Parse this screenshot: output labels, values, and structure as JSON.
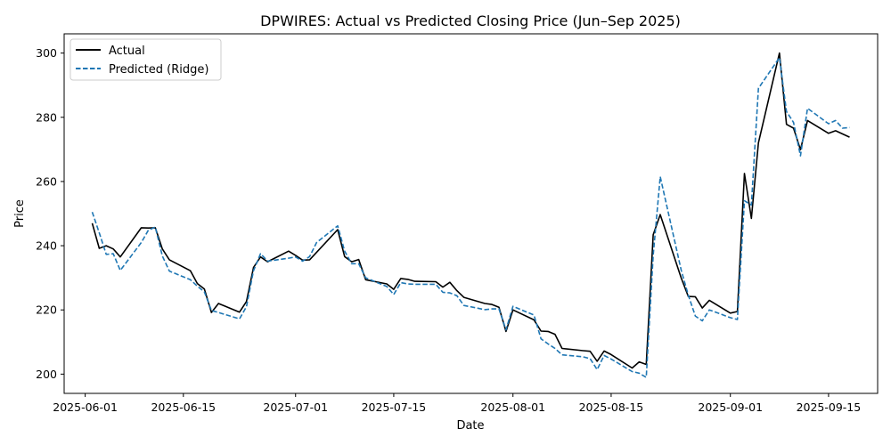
{
  "chart_data": {
    "type": "line",
    "title": "DPWIRES: Actual vs Predicted Closing Price (Jun–Sep 2025)",
    "xlabel": "Date",
    "ylabel": "Price",
    "xlim": [
      "2025-05-29",
      "2025-09-22"
    ],
    "ylim": [
      194,
      306
    ],
    "x_ticks": [
      "2025-06-01",
      "2025-06-15",
      "2025-07-01",
      "2025-07-15",
      "2025-08-01",
      "2025-08-15",
      "2025-09-01",
      "2025-09-15"
    ],
    "y_ticks": [
      200,
      220,
      240,
      260,
      280,
      300
    ],
    "grid": false,
    "legend_position": "top-left",
    "series": [
      {
        "name": "Actual",
        "color": "#000000",
        "style": "solid",
        "points": [
          [
            "2025-06-02",
            247.0
          ],
          [
            "2025-06-03",
            239.2
          ],
          [
            "2025-06-04",
            240.0
          ],
          [
            "2025-06-05",
            239.0
          ],
          [
            "2025-06-06",
            236.5
          ],
          [
            "2025-06-09",
            245.6
          ],
          [
            "2025-06-10",
            245.5
          ],
          [
            "2025-06-11",
            245.6
          ],
          [
            "2025-06-12",
            239.0
          ],
          [
            "2025-06-13",
            235.6
          ],
          [
            "2025-06-16",
            232.2
          ],
          [
            "2025-06-17",
            228.2
          ],
          [
            "2025-06-18",
            226.5
          ],
          [
            "2025-06-19",
            219.2
          ],
          [
            "2025-06-20",
            222.0
          ],
          [
            "2025-06-23",
            219.3
          ],
          [
            "2025-06-24",
            222.6
          ],
          [
            "2025-06-25",
            233.2
          ],
          [
            "2025-06-26",
            236.5
          ],
          [
            "2025-06-27",
            235.0
          ],
          [
            "2025-06-30",
            238.3
          ],
          [
            "2025-07-01",
            237.0
          ],
          [
            "2025-07-02",
            235.5
          ],
          [
            "2025-07-03",
            235.6
          ],
          [
            "2025-07-07",
            245.0
          ],
          [
            "2025-07-08",
            236.6
          ],
          [
            "2025-07-09",
            235.0
          ],
          [
            "2025-07-10",
            235.7
          ],
          [
            "2025-07-11",
            229.4
          ],
          [
            "2025-07-14",
            228.1
          ],
          [
            "2025-07-15",
            226.4
          ],
          [
            "2025-07-16",
            229.8
          ],
          [
            "2025-07-17",
            229.5
          ],
          [
            "2025-07-18",
            228.9
          ],
          [
            "2025-07-21",
            228.8
          ],
          [
            "2025-07-22",
            227.1
          ],
          [
            "2025-07-23",
            228.6
          ],
          [
            "2025-07-24",
            226.0
          ],
          [
            "2025-07-25",
            223.9
          ],
          [
            "2025-07-28",
            222.0
          ],
          [
            "2025-07-29",
            221.7
          ],
          [
            "2025-07-30",
            220.8
          ],
          [
            "2025-07-31",
            213.3
          ],
          [
            "2025-08-01",
            220.0
          ],
          [
            "2025-08-04",
            216.9
          ],
          [
            "2025-08-05",
            213.4
          ],
          [
            "2025-08-06",
            213.3
          ],
          [
            "2025-08-07",
            212.4
          ],
          [
            "2025-08-08",
            208.0
          ],
          [
            "2025-08-11",
            207.3
          ],
          [
            "2025-08-12",
            207.1
          ],
          [
            "2025-08-13",
            204.0
          ],
          [
            "2025-08-14",
            207.2
          ],
          [
            "2025-08-15",
            206.1
          ],
          [
            "2025-08-18",
            201.9
          ],
          [
            "2025-08-19",
            203.8
          ],
          [
            "2025-08-20",
            203.0
          ],
          [
            "2025-08-21",
            243.4
          ],
          [
            "2025-08-22",
            249.7
          ],
          [
            "2025-08-25",
            229.9
          ],
          [
            "2025-08-26",
            224.2
          ],
          [
            "2025-08-27",
            224.1
          ],
          [
            "2025-08-28",
            220.6
          ],
          [
            "2025-08-29",
            223.0
          ],
          [
            "2025-09-01",
            219.0
          ],
          [
            "2025-09-02",
            219.5
          ],
          [
            "2025-09-03",
            262.5
          ],
          [
            "2025-09-04",
            248.5
          ],
          [
            "2025-09-05",
            272.0
          ],
          [
            "2025-09-08",
            300.0
          ],
          [
            "2025-09-09",
            277.8
          ],
          [
            "2025-09-10",
            276.6
          ],
          [
            "2025-09-11",
            269.9
          ],
          [
            "2025-09-12",
            279.0
          ],
          [
            "2025-09-15",
            275.0
          ],
          [
            "2025-09-16",
            275.8
          ],
          [
            "2025-09-18",
            273.8
          ]
        ]
      },
      {
        "name": "Predicted (Ridge)",
        "color": "#1f77b4",
        "style": "dashed",
        "points": [
          [
            "2025-06-02",
            250.5
          ],
          [
            "2025-06-03",
            244.0
          ],
          [
            "2025-06-04",
            237.3
          ],
          [
            "2025-06-05",
            237.5
          ],
          [
            "2025-06-06",
            232.3
          ],
          [
            "2025-06-09",
            241.0
          ],
          [
            "2025-06-10",
            244.8
          ],
          [
            "2025-06-11",
            245.8
          ],
          [
            "2025-06-12",
            236.8
          ],
          [
            "2025-06-13",
            232.1
          ],
          [
            "2025-06-16",
            229.4
          ],
          [
            "2025-06-17",
            227.4
          ],
          [
            "2025-06-18",
            225.6
          ],
          [
            "2025-06-19",
            219.8
          ],
          [
            "2025-06-20",
            219.2
          ],
          [
            "2025-06-23",
            217.2
          ],
          [
            "2025-06-24",
            221.0
          ],
          [
            "2025-06-25",
            232.2
          ],
          [
            "2025-06-26",
            237.5
          ],
          [
            "2025-06-27",
            235.2
          ],
          [
            "2025-06-30",
            236.1
          ],
          [
            "2025-07-01",
            236.5
          ],
          [
            "2025-07-02",
            235.2
          ],
          [
            "2025-07-03",
            236.6
          ],
          [
            "2025-07-04",
            241.0
          ],
          [
            "2025-07-07",
            246.2
          ],
          [
            "2025-07-08",
            238.3
          ],
          [
            "2025-07-09",
            234.4
          ],
          [
            "2025-07-10",
            234.4
          ],
          [
            "2025-07-11",
            230.0
          ],
          [
            "2025-07-14",
            227.3
          ],
          [
            "2025-07-15",
            224.8
          ],
          [
            "2025-07-16",
            228.5
          ],
          [
            "2025-07-17",
            228.1
          ],
          [
            "2025-07-18",
            228.0
          ],
          [
            "2025-07-21",
            228.0
          ],
          [
            "2025-07-22",
            225.5
          ],
          [
            "2025-07-23",
            225.3
          ],
          [
            "2025-07-24",
            224.4
          ],
          [
            "2025-07-25",
            221.4
          ],
          [
            "2025-07-28",
            220.1
          ],
          [
            "2025-07-29",
            220.3
          ],
          [
            "2025-07-30",
            220.3
          ],
          [
            "2025-07-31",
            213.8
          ],
          [
            "2025-08-01",
            221.1
          ],
          [
            "2025-08-04",
            218.4
          ],
          [
            "2025-08-05",
            211.0
          ],
          [
            "2025-08-06",
            209.4
          ],
          [
            "2025-08-07",
            208.0
          ],
          [
            "2025-08-08",
            206.0
          ],
          [
            "2025-08-11",
            205.4
          ],
          [
            "2025-08-12",
            204.8
          ],
          [
            "2025-08-13",
            201.4
          ],
          [
            "2025-08-14",
            205.8
          ],
          [
            "2025-08-15",
            204.7
          ],
          [
            "2025-08-18",
            200.8
          ],
          [
            "2025-08-19",
            200.3
          ],
          [
            "2025-08-20",
            199.0
          ],
          [
            "2025-08-21",
            237.0
          ],
          [
            "2025-08-22",
            261.5
          ],
          [
            "2025-08-25",
            232.3
          ],
          [
            "2025-08-26",
            224.6
          ],
          [
            "2025-08-27",
            218.1
          ],
          [
            "2025-08-28",
            216.6
          ],
          [
            "2025-08-29",
            220.0
          ],
          [
            "2025-09-01",
            217.6
          ],
          [
            "2025-09-02",
            217.0
          ],
          [
            "2025-09-03",
            254.0
          ],
          [
            "2025-09-04",
            252.7
          ],
          [
            "2025-09-05",
            289.0
          ],
          [
            "2025-09-08",
            298.6
          ],
          [
            "2025-09-09",
            281.8
          ],
          [
            "2025-09-10",
            278.4
          ],
          [
            "2025-09-11",
            268.0
          ],
          [
            "2025-09-12",
            282.8
          ],
          [
            "2025-09-15",
            278.0
          ],
          [
            "2025-09-16",
            279.0
          ],
          [
            "2025-09-17",
            276.6
          ],
          [
            "2025-09-18",
            276.8
          ]
        ]
      }
    ]
  }
}
